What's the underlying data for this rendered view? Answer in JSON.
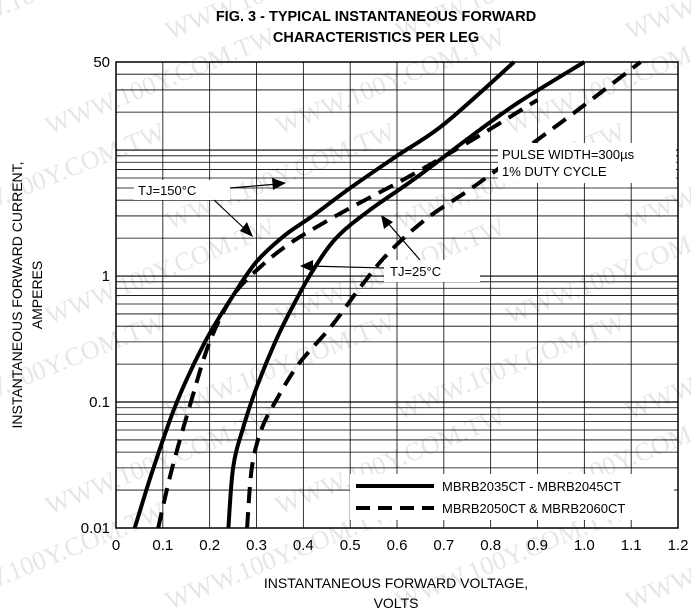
{
  "chart_data": {
    "type": "line",
    "title_lines": [
      "FIG. 3 - TYPICAL INSTANTANEOUS FORWARD",
      "CHARACTERISTICS PER LEG"
    ],
    "xlabel_lines": [
      "INSTANTANEOUS FORWARD VOLTAGE,",
      "VOLTS"
    ],
    "ylabel_lines": [
      "INSTANTANEOUS FORWARD CURRENT,",
      "AMPERES"
    ],
    "xlim": [
      0,
      1.2
    ],
    "ylim": [
      0.01,
      50
    ],
    "yscale": "log",
    "x_tick_labels": [
      "0",
      "0.1",
      "0.2",
      "0.3",
      "0.4",
      "0.5",
      "0.6",
      "0.7",
      "0.8",
      "0.9",
      "1.0",
      "1.1",
      "1.2"
    ],
    "y_tick_labels": [
      {
        "value": 0.01,
        "label": "0.01"
      },
      {
        "value": 0.1,
        "label": "0.1"
      },
      {
        "value": 1,
        "label": "1"
      },
      {
        "value": 50,
        "label": "50"
      }
    ],
    "grid": true,
    "legend_position": "bottom-right",
    "legend": [
      {
        "label": "MBRB2035CT - MBRB2045CT",
        "style": "solid"
      },
      {
        "label": "MBRB2050CT & MBRB2060CT",
        "style": "dashed"
      }
    ],
    "series": [
      {
        "style": "solid",
        "group": "MBRB2035CT - MBRB2045CT",
        "temperature": "150°C",
        "x": [
          0.04,
          0.08,
          0.13,
          0.19,
          0.25,
          0.3,
          0.36,
          0.42,
          0.5,
          0.6,
          0.7,
          0.85
        ],
        "y": [
          0.01,
          0.03,
          0.1,
          0.3,
          0.7,
          1.3,
          2.1,
          3.0,
          5.0,
          9.0,
          16.0,
          50.0
        ]
      },
      {
        "style": "dashed",
        "group": "MBRB2050CT & MBRB2060CT",
        "temperature": "150°C",
        "x": [
          0.09,
          0.12,
          0.16,
          0.2,
          0.25,
          0.31,
          0.37,
          0.44,
          0.52,
          0.62,
          0.76,
          0.9
        ],
        "y": [
          0.01,
          0.03,
          0.1,
          0.3,
          0.7,
          1.2,
          1.8,
          2.6,
          3.8,
          6.0,
          12.0,
          25.0
        ]
      },
      {
        "style": "solid",
        "group": "MBRB2035CT - MBRB2045CT",
        "temperature": "25°C",
        "x": [
          0.24,
          0.25,
          0.27,
          0.3,
          0.34,
          0.38,
          0.42,
          0.47,
          0.54,
          0.64,
          0.76,
          0.86,
          1.0
        ],
        "y": [
          0.01,
          0.03,
          0.06,
          0.13,
          0.3,
          0.6,
          1.1,
          2.0,
          3.3,
          6.0,
          13.0,
          24.0,
          50.0
        ]
      },
      {
        "style": "dashed",
        "group": "MBRB2050CT & MBRB2060CT",
        "temperature": "25°C",
        "x": [
          0.28,
          0.29,
          0.31,
          0.34,
          0.39,
          0.46,
          0.52,
          0.58,
          0.66,
          0.76,
          0.87,
          0.98,
          1.12
        ],
        "y": [
          0.01,
          0.03,
          0.06,
          0.1,
          0.2,
          0.4,
          0.8,
          1.5,
          2.8,
          5.0,
          10.0,
          20.0,
          50.0
        ]
      }
    ],
    "annotations": {
      "tj150": "TJ=150°C",
      "tj25": "TJ=25°C",
      "pulse_width": "PULSE WIDTH=300µs",
      "duty_cycle": "1% DUTY CYCLE"
    }
  },
  "watermark": "WWW.100Y.COM.TW"
}
